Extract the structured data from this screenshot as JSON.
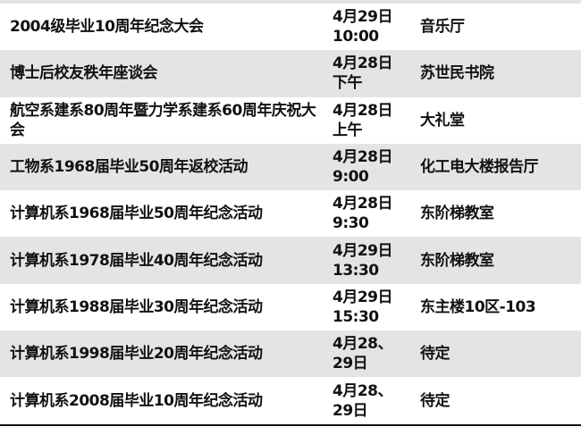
{
  "rows": [
    {
      "event": "2004级毕业10周年纪念大会",
      "date": "4月29日",
      "time": "10:00",
      "venue": "音乐厅"
    },
    {
      "event": "博士后校友秩年座谈会",
      "date": "4月28日",
      "time": "下午",
      "venue": "苏世民书院"
    },
    {
      "event": "航空系建系80周年暨力学系建系60周年庆祝大会",
      "date": "4月28日",
      "time": "上午",
      "venue": "大礼堂"
    },
    {
      "event": "工物系1968届毕业50周年返校活动",
      "date": "4月28日",
      "time": "9:00",
      "venue": "化工电大楼报告厅"
    },
    {
      "event": "计算机系1968届毕业50周年纪念活动",
      "date": "4月28日",
      "time": "9:30",
      "venue": "东阶梯教室"
    },
    {
      "event": "计算机系1978届毕业40周年纪念活动",
      "date": "4月29日",
      "time": "13:30",
      "venue": "东阶梯教室"
    },
    {
      "event": "计算机系1988届毕业30周年纪念活动",
      "date": "4月29日",
      "time": "15:30",
      "venue": "东主楼10区-103"
    },
    {
      "event": "计算机系1998届毕业20周年纪念活动",
      "date": "4月28、",
      "time": "29日",
      "venue": "待定"
    },
    {
      "event": "计算机系2008届毕业10周年纪念活动",
      "date": "4月28、",
      "time": "29日",
      "venue": "待定"
    }
  ]
}
